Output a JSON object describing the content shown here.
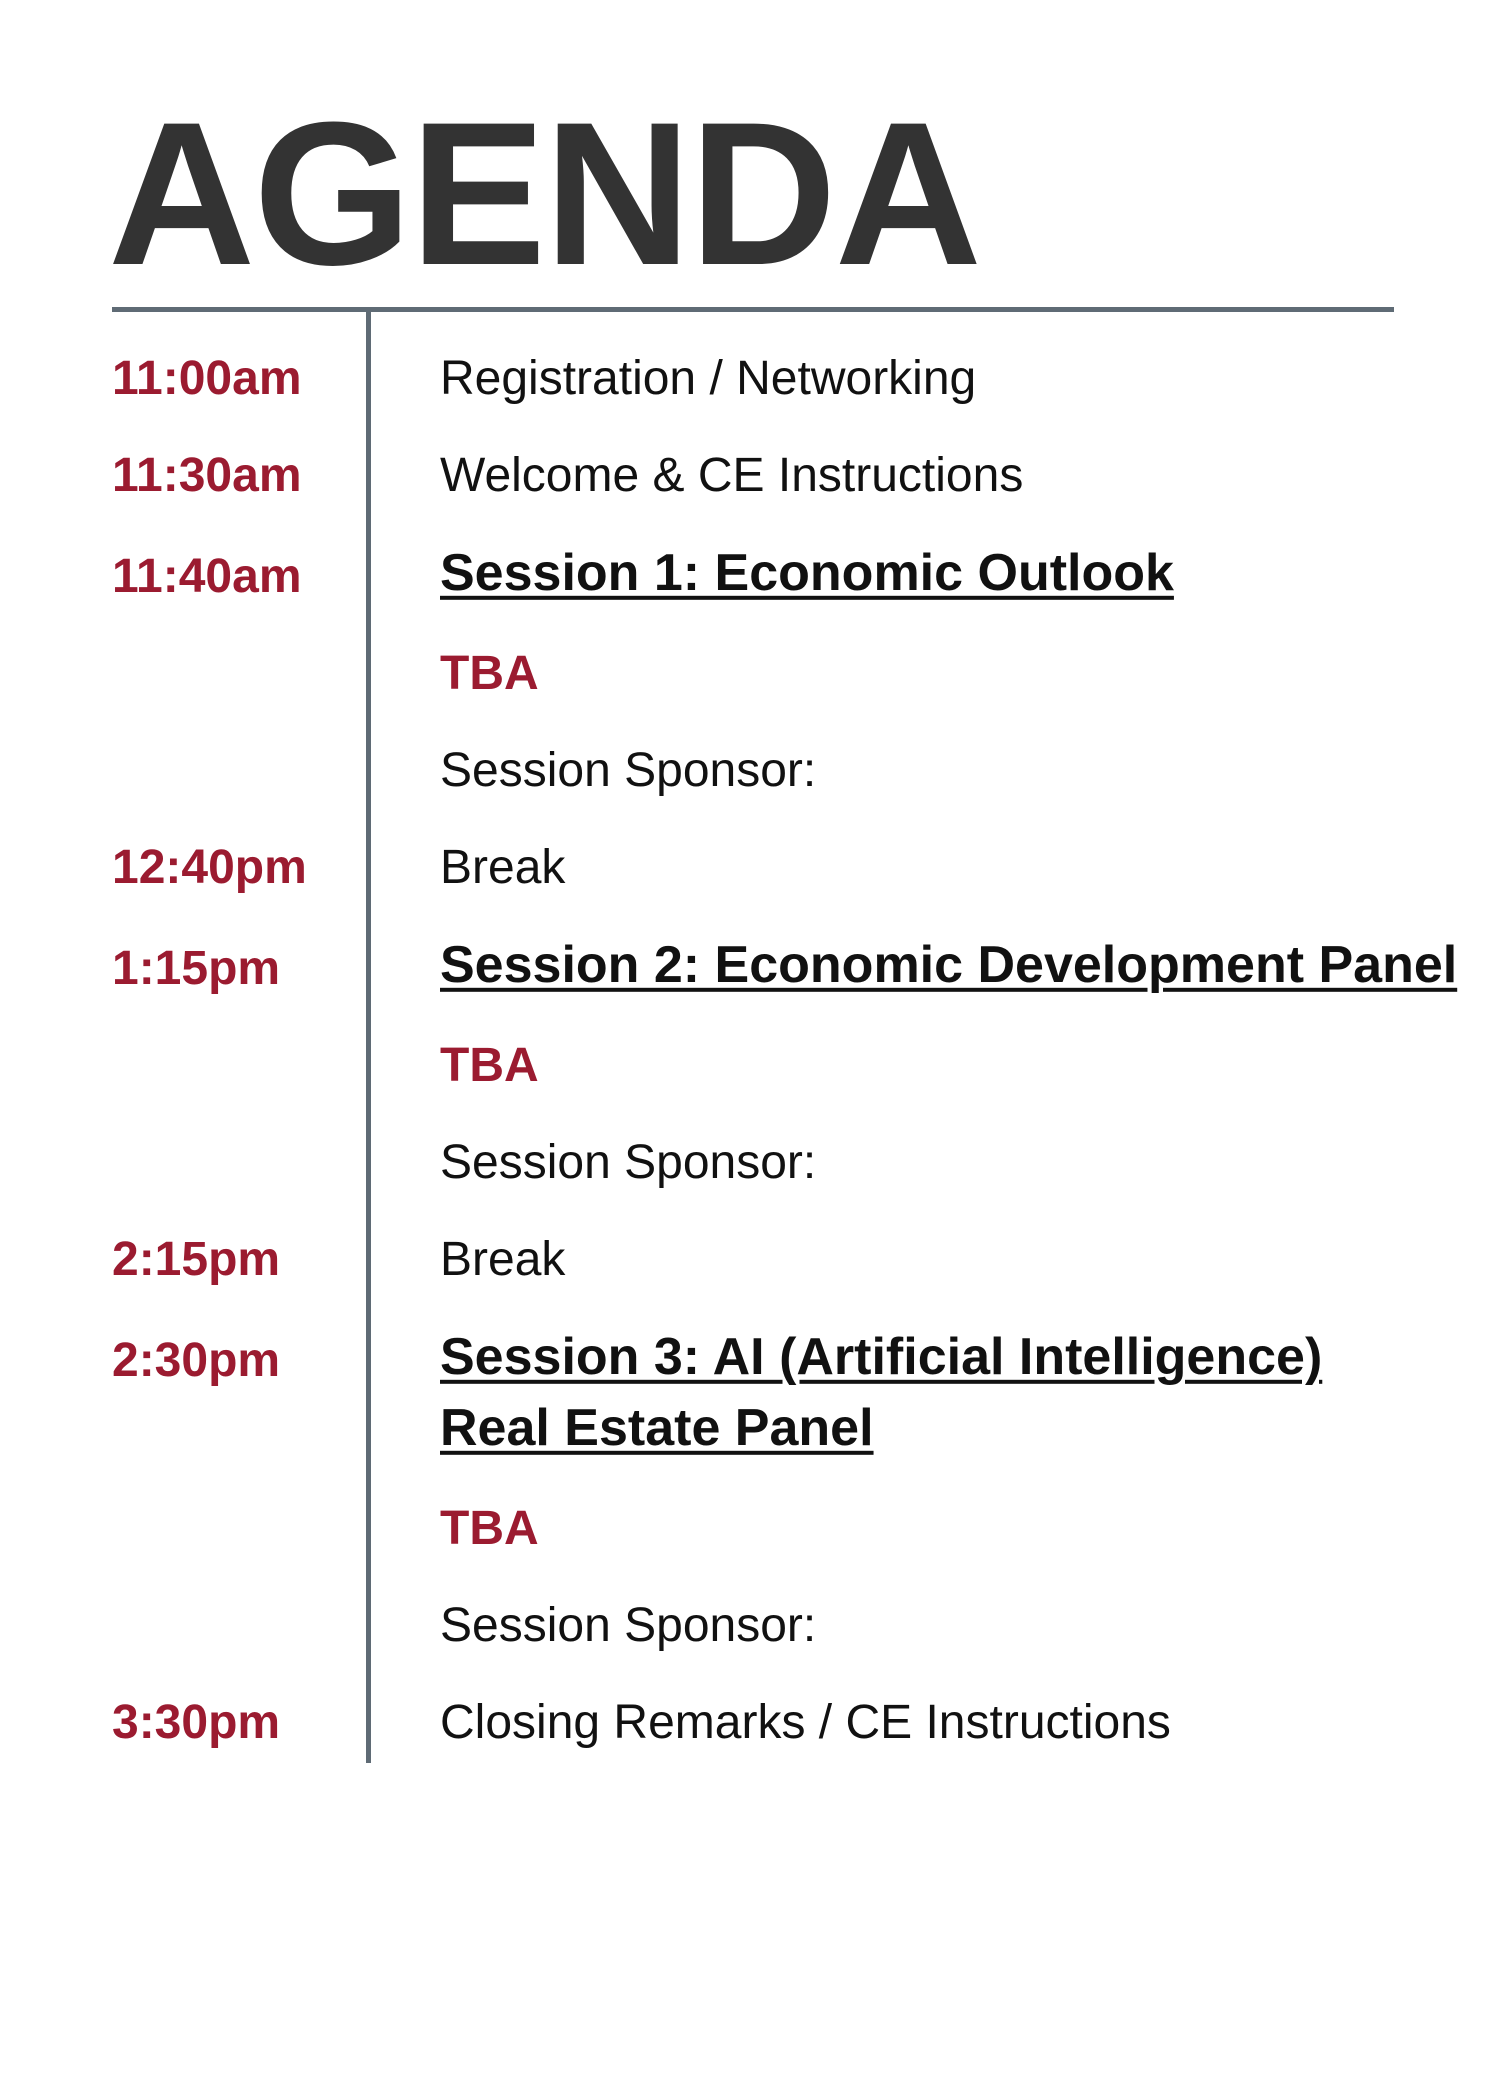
{
  "header": {
    "title": "AGENDA"
  },
  "agenda": [
    {
      "time": "11:00am",
      "activity": "Registration / Networking"
    },
    {
      "time": "11:30am",
      "activity": "Welcome & CE Instructions"
    },
    {
      "time": "11:40am",
      "session": [
        "Session 1: Economic Outlook"
      ],
      "speaker": "TBA",
      "sponsor": "Session Sponsor:"
    },
    {
      "time": "12:40pm",
      "activity": "Break"
    },
    {
      "time": "1:15pm",
      "session": [
        "Session 2: Economic Development Panel"
      ],
      "speaker": "TBA",
      "sponsor": "Session Sponsor:"
    },
    {
      "time": "2:15pm",
      "activity": "Break"
    },
    {
      "time": "2:30pm",
      "session": [
        "Session 3: AI (Artificial Intelligence)",
        "Real Estate Panel"
      ],
      "speaker": "TBA",
      "sponsor": "Session Sponsor:"
    },
    {
      "time": "3:30pm",
      "activity": "Closing Remarks / CE Instructions"
    }
  ]
}
